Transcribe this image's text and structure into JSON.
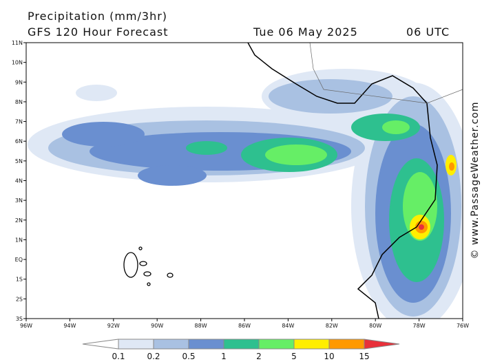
{
  "header": {
    "title": "Precipitation (mm/3hr)",
    "subtitle": "GFS 120 Hour Forecast",
    "date": "Tue 06 May 2025",
    "time": "06 UTC"
  },
  "map": {
    "lat_labels": [
      "11N",
      "10N",
      "9N",
      "8N",
      "7N",
      "6N",
      "5N",
      "4N",
      "3N",
      "2N",
      "1N",
      "EQ",
      "1S",
      "2S",
      "3S"
    ],
    "lon_labels": [
      "96W",
      "94W",
      "92W",
      "90W",
      "88W",
      "86W",
      "84W",
      "82W",
      "80W",
      "78W",
      "76W"
    ]
  },
  "colorbar": {
    "labels": [
      "0.1",
      "0.2",
      "0.5",
      "1",
      "2",
      "5",
      "10",
      "15"
    ]
  },
  "watermark": "© www.PassageWeather.com"
}
